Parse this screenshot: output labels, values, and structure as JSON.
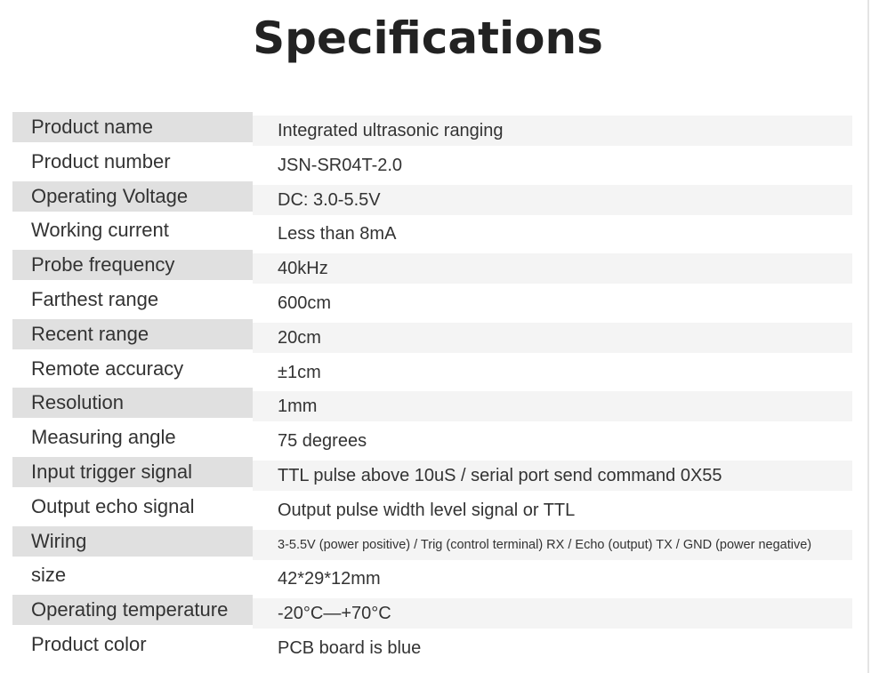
{
  "title": "Specifications",
  "rows": [
    {
      "label": "Product name",
      "value": "Integrated ultrasonic ranging"
    },
    {
      "label": "Product number",
      "value": "JSN-SR04T-2.0"
    },
    {
      "label": "Operating Voltage",
      "value": "DC: 3.0-5.5V"
    },
    {
      "label": "Working current",
      "value": "Less than 8mA"
    },
    {
      "label": "Probe frequency",
      "value": "40kHz"
    },
    {
      "label": "Farthest range",
      "value": "600cm"
    },
    {
      "label": "Recent range",
      "value": "20cm"
    },
    {
      "label": "Remote accuracy",
      "value": "±1cm"
    },
    {
      "label": "Resolution",
      "value": "1mm"
    },
    {
      "label": "Measuring angle",
      "value": "75 degrees"
    },
    {
      "label": "Input trigger signal",
      "value": "TTL pulse above 10uS / serial port send command 0X55"
    },
    {
      "label": "Output echo signal",
      "value": "Output pulse width level signal or TTL"
    },
    {
      "label": "Wiring",
      "value": "3-5.5V (power positive) / Trig (control terminal) RX / Echo (output) TX / GND (power negative)"
    },
    {
      "label": "size",
      "value": "42*29*12mm"
    },
    {
      "label": "Operating temperature",
      "value": "-20°C—+70°C"
    },
    {
      "label": "Product color",
      "value": "PCB board is blue"
    }
  ]
}
